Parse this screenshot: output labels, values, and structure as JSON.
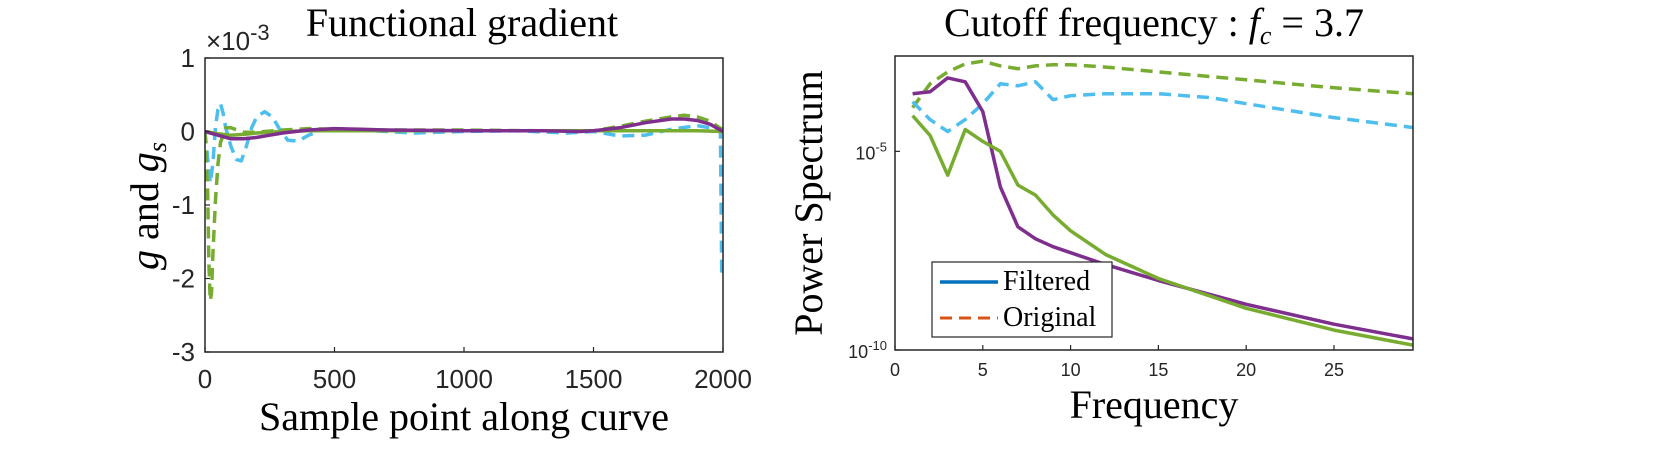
{
  "chart_data": [
    {
      "type": "line",
      "title": "Functional gradient",
      "exponent_label": "×10",
      "exponent_power": "-3",
      "xlabel": "Sample point along curve",
      "ylabel_main": "g",
      "ylabel_and": " and ",
      "ylabel_g2": "g",
      "ylabel_sub": "s",
      "xlim": [
        0,
        2000
      ],
      "ylim": [
        -3,
        1
      ],
      "xticks": [
        0,
        500,
        1000,
        1500,
        2000
      ],
      "yticks": [
        -3,
        -2,
        -1,
        0,
        1
      ],
      "ytick_labels": [
        "-3",
        "-2",
        "-1",
        "0",
        "1"
      ],
      "grid": false,
      "series": [
        {
          "style": "dashed",
          "color": "#4DBEEE",
          "x": [
            0,
            10,
            20,
            30,
            40,
            50,
            60,
            70,
            80,
            100,
            120,
            140,
            160,
            180,
            200,
            230,
            260,
            290,
            320,
            360,
            400,
            450,
            500,
            600,
            700,
            800,
            1000,
            1200,
            1400,
            1500,
            1600,
            1700,
            1800,
            1900,
            1950,
            1990,
            1995,
            2000
          ],
          "y": [
            0,
            -0.35,
            -0.7,
            -0.45,
            0.05,
            0.3,
            0.38,
            0.25,
            0.05,
            -0.2,
            -0.38,
            -0.4,
            -0.2,
            0.05,
            0.2,
            0.27,
            0.2,
            0.02,
            -0.12,
            -0.13,
            -0.05,
            0.02,
            0.04,
            0.02,
            0.0,
            -0.02,
            0.0,
            0.01,
            -0.02,
            0.0,
            -0.06,
            -0.05,
            0.03,
            0.08,
            0.05,
            0.0,
            -1.9,
            -1.9
          ]
        },
        {
          "style": "dashed",
          "color": "#77AC30",
          "x": [
            0,
            10,
            15,
            20,
            25,
            30,
            40,
            50,
            60,
            80,
            100,
            150,
            200,
            300,
            400,
            500,
            700,
            1000,
            1300,
            1500,
            1600,
            1700,
            1800,
            1850,
            1900,
            1950,
            2000
          ],
          "y": [
            0,
            -0.8,
            -1.8,
            -2.3,
            -2.2,
            -1.7,
            -0.95,
            -0.45,
            -0.15,
            0.05,
            0.05,
            -0.01,
            -0.01,
            0.02,
            0.04,
            0.03,
            0.02,
            0.02,
            0.01,
            0.01,
            0.07,
            0.14,
            0.2,
            0.22,
            0.2,
            0.14,
            0.02
          ]
        },
        {
          "style": "solid",
          "color": "#77AC30",
          "x": [
            0,
            50,
            100,
            150,
            200,
            300,
            400,
            500,
            700,
            1000,
            1300,
            1500,
            1700,
            1900,
            2000
          ],
          "y": [
            0,
            -0.03,
            -0.05,
            -0.04,
            -0.02,
            0.0,
            0.01,
            0.01,
            0.01,
            0.01,
            0.01,
            0.01,
            0.01,
            0.01,
            0.0
          ]
        },
        {
          "style": "solid",
          "color": "#7E2F8E",
          "x": [
            0,
            50,
            100,
            150,
            200,
            250,
            300,
            400,
            500,
            600,
            700,
            1000,
            1300,
            1450,
            1500,
            1600,
            1700,
            1800,
            1850,
            1900,
            1950,
            2000
          ],
          "y": [
            0,
            -0.05,
            -0.1,
            -0.1,
            -0.08,
            -0.05,
            -0.02,
            0.02,
            0.04,
            0.03,
            0.02,
            0.01,
            0.01,
            0.0,
            0.01,
            0.05,
            0.12,
            0.17,
            0.17,
            0.15,
            0.1,
            0.0
          ]
        }
      ]
    },
    {
      "type": "line",
      "title_prefix": "Cutoff frequency : ",
      "title_f": "f",
      "title_sub": "c",
      "title_suffix": " = 3.7",
      "xlabel": "Frequency",
      "ylabel": "Power Spectrum",
      "xlim": [
        0,
        29.5
      ],
      "ylim_log10": [
        -10,
        -2.6
      ],
      "yscale": "log",
      "xticks": [
        0,
        5,
        10,
        15,
        20,
        25
      ],
      "yticks_log10": [
        -10,
        -5
      ],
      "ytick_base": "10",
      "ytick_powers": [
        "-10",
        "-5"
      ],
      "grid": false,
      "legend": {
        "location": "bottom-left",
        "entries": [
          {
            "label": "Filtered",
            "style": "solid",
            "color": "#0072BD"
          },
          {
            "label": "Original",
            "style": "dashed",
            "color": "#D95319"
          }
        ]
      },
      "series": [
        {
          "style": "dashed",
          "color": "#77AC30",
          "x": [
            1,
            2,
            3,
            4,
            5,
            6,
            7,
            8,
            9,
            10,
            12,
            15,
            20,
            25,
            29.5
          ],
          "y_log10": [
            -3.9,
            -3.3,
            -3.0,
            -2.8,
            -2.73,
            -2.85,
            -2.92,
            -2.85,
            -2.82,
            -2.82,
            -2.88,
            -3.0,
            -3.2,
            -3.4,
            -3.55
          ]
        },
        {
          "style": "dashed",
          "color": "#4DBEEE",
          "x": [
            1,
            2,
            3,
            4,
            5,
            6,
            7,
            8,
            9,
            10,
            12,
            15,
            18,
            20,
            25,
            29.5
          ],
          "y_log10": [
            -3.75,
            -4.2,
            -4.5,
            -4.2,
            -3.8,
            -3.3,
            -3.35,
            -3.25,
            -3.7,
            -3.6,
            -3.55,
            -3.55,
            -3.65,
            -3.8,
            -4.15,
            -4.4
          ]
        },
        {
          "style": "solid",
          "color": "#7E2F8E",
          "x": [
            1,
            2,
            3,
            4,
            5,
            6,
            7,
            8,
            9,
            10,
            12,
            15,
            20,
            25,
            29.5
          ],
          "y_log10": [
            -3.55,
            -3.5,
            -3.15,
            -3.25,
            -4.0,
            -5.9,
            -6.9,
            -7.2,
            -7.4,
            -7.55,
            -7.85,
            -8.25,
            -8.85,
            -9.35,
            -9.72
          ]
        },
        {
          "style": "solid",
          "color": "#77AC30",
          "x": [
            1,
            2,
            3,
            4,
            5,
            6,
            7,
            8,
            9,
            10,
            12,
            15,
            20,
            25,
            29.5
          ],
          "y_log10": [
            -4.1,
            -4.6,
            -5.6,
            -4.45,
            -4.75,
            -5.0,
            -5.85,
            -6.1,
            -6.6,
            -7.0,
            -7.6,
            -8.2,
            -8.95,
            -9.5,
            -9.88
          ]
        }
      ]
    }
  ]
}
